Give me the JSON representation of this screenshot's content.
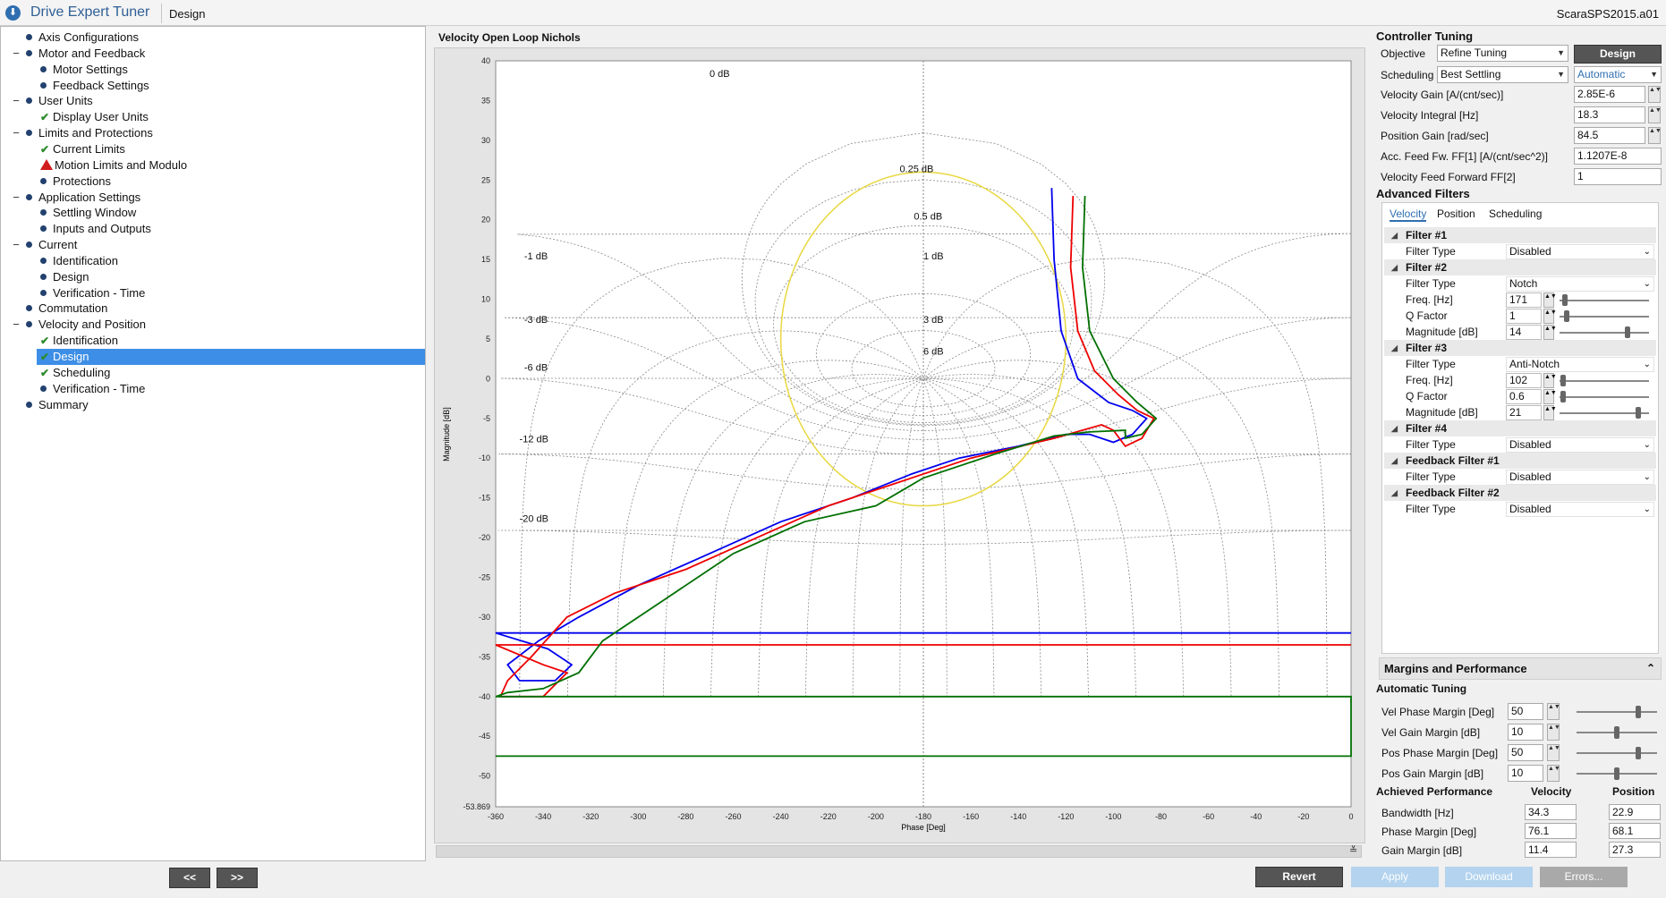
{
  "titlebar": {
    "app_title": "Drive Expert Tuner",
    "breadcrumb": "Design",
    "filename": "ScaraSPS2015.a01"
  },
  "tree": [
    {
      "label": "Axis Configurations",
      "level": 1,
      "toggle": "",
      "icon": "bullet"
    },
    {
      "label": "Motor and Feedback",
      "level": 1,
      "toggle": "−",
      "icon": "bullet"
    },
    {
      "label": "Motor Settings",
      "level": 2,
      "toggle": "",
      "icon": "bullet"
    },
    {
      "label": "Feedback Settings",
      "level": 2,
      "toggle": "",
      "icon": "bullet"
    },
    {
      "label": "User Units",
      "level": 1,
      "toggle": "−",
      "icon": "bullet"
    },
    {
      "label": "Display User Units",
      "level": 2,
      "toggle": "",
      "icon": "check"
    },
    {
      "label": "Limits and Protections",
      "level": 1,
      "toggle": "−",
      "icon": "bullet"
    },
    {
      "label": "Current Limits",
      "level": 2,
      "toggle": "",
      "icon": "check"
    },
    {
      "label": "Motion Limits and Modulo",
      "level": 2,
      "toggle": "",
      "icon": "warn"
    },
    {
      "label": "Protections",
      "level": 2,
      "toggle": "",
      "icon": "bullet"
    },
    {
      "label": "Application Settings",
      "level": 1,
      "toggle": "−",
      "icon": "bullet"
    },
    {
      "label": "Settling Window",
      "level": 2,
      "toggle": "",
      "icon": "bullet"
    },
    {
      "label": "Inputs and Outputs",
      "level": 2,
      "toggle": "",
      "icon": "bullet"
    },
    {
      "label": "Current",
      "level": 1,
      "toggle": "−",
      "icon": "bullet"
    },
    {
      "label": "Identification",
      "level": 2,
      "toggle": "",
      "icon": "bullet"
    },
    {
      "label": "Design",
      "level": 2,
      "toggle": "",
      "icon": "bullet"
    },
    {
      "label": "Verification - Time",
      "level": 2,
      "toggle": "",
      "icon": "bullet"
    },
    {
      "label": "Commutation",
      "level": 1,
      "toggle": "",
      "icon": "bullet"
    },
    {
      "label": "Velocity and Position",
      "level": 1,
      "toggle": "−",
      "icon": "bullet"
    },
    {
      "label": "Identification",
      "level": 2,
      "toggle": "",
      "icon": "check"
    },
    {
      "label": "Design",
      "level": 2,
      "toggle": "",
      "icon": "check",
      "selected": true
    },
    {
      "label": "Scheduling",
      "level": 2,
      "toggle": "",
      "icon": "check"
    },
    {
      "label": "Verification - Time",
      "level": 2,
      "toggle": "",
      "icon": "bullet"
    },
    {
      "label": "Summary",
      "level": 1,
      "toggle": "",
      "icon": "bullet"
    }
  ],
  "nav": {
    "prev": "<<",
    "next": ">>"
  },
  "chart_title": "Velocity Open Loop Nichols",
  "chart_data": {
    "type": "line",
    "title": "Velocity Open Loop Nichols",
    "xlabel": "Phase [Deg]",
    "ylabel": "Magnitude [dB]",
    "xlim": [
      -360,
      0
    ],
    "ylim": [
      -53.869,
      40
    ],
    "xticks": [
      -360,
      -340,
      -320,
      -300,
      -280,
      -260,
      -240,
      -220,
      -200,
      -180,
      -160,
      -140,
      -120,
      -100,
      -80,
      -60,
      -40,
      -20,
      0
    ],
    "yticks": [
      "40",
      "35",
      "30",
      "25",
      "20",
      "15",
      "10",
      "5",
      "0",
      "-5",
      "-10",
      "-15",
      "-20",
      "-25",
      "-30",
      "-35",
      "-40",
      "-45",
      "-50",
      "-53.869"
    ],
    "grid_labels": [
      {
        "text": "0 dB",
        "x": -270,
        "y": 38
      },
      {
        "text": "0.25 dB",
        "x": -190,
        "y": 26
      },
      {
        "text": "0.5 dB",
        "x": -184,
        "y": 20
      },
      {
        "text": "1 dB",
        "x": -180,
        "y": 15
      },
      {
        "text": "3 dB",
        "x": -180,
        "y": 7
      },
      {
        "text": "6 dB",
        "x": -180,
        "y": 3
      },
      {
        "text": "-1 dB",
        "x": -348,
        "y": 15
      },
      {
        "text": "-3 dB",
        "x": -348,
        "y": 7
      },
      {
        "text": "-6 dB",
        "x": -348,
        "y": 1
      },
      {
        "text": "-12 dB",
        "x": -350,
        "y": -8
      },
      {
        "text": "-20 dB",
        "x": -350,
        "y": -18
      }
    ],
    "series": [
      {
        "color": "#0000ee",
        "points": [
          [
            -126,
            24
          ],
          [
            -125,
            15
          ],
          [
            -122,
            6
          ],
          [
            -115,
            0
          ],
          [
            -102,
            -3
          ],
          [
            -92,
            -4
          ],
          [
            -86,
            -5
          ],
          [
            -92,
            -7
          ],
          [
            -100,
            -8
          ],
          [
            -110,
            -7
          ],
          [
            -120,
            -7
          ],
          [
            -140,
            -8.5
          ],
          [
            -165,
            -10
          ],
          [
            -185,
            -12
          ],
          [
            -210,
            -15
          ],
          [
            -240,
            -18
          ],
          [
            -270,
            -22
          ],
          [
            -300,
            -26
          ],
          [
            -325,
            -30
          ],
          [
            -342,
            -33
          ],
          [
            -355,
            -36
          ],
          [
            -350,
            -38
          ],
          [
            -335,
            -38
          ],
          [
            -328,
            -36
          ],
          [
            -338,
            -34
          ],
          [
            -360,
            -32
          ],
          [
            -20,
            -32
          ],
          [
            0,
            -32
          ]
        ]
      },
      {
        "color": "#ee0000",
        "points": [
          [
            -117,
            23
          ],
          [
            -118,
            14
          ],
          [
            -115,
            6
          ],
          [
            -108,
            1
          ],
          [
            -98,
            -2
          ],
          [
            -90,
            -4
          ],
          [
            -83,
            -5
          ],
          [
            -88,
            -7.5
          ],
          [
            -95,
            -8.5
          ],
          [
            -100,
            -6.5
          ],
          [
            -105,
            -5.8
          ],
          [
            -125,
            -7.5
          ],
          [
            -160,
            -10
          ],
          [
            -190,
            -13
          ],
          [
            -220,
            -16
          ],
          [
            -250,
            -20
          ],
          [
            -280,
            -24
          ],
          [
            -310,
            -27
          ],
          [
            -330,
            -30
          ],
          [
            -345,
            -35
          ],
          [
            -355,
            -38
          ],
          [
            -358,
            -40
          ],
          [
            -340,
            -40
          ],
          [
            -330,
            -37
          ],
          [
            -340,
            -36
          ],
          [
            -360,
            -33.5
          ],
          [
            -50,
            -33.5
          ],
          [
            0,
            -33.5
          ]
        ]
      },
      {
        "color": "#007000",
        "points": [
          [
            -112,
            23
          ],
          [
            -113,
            14
          ],
          [
            -110,
            6
          ],
          [
            -100,
            0
          ],
          [
            -90,
            -3
          ],
          [
            -82,
            -5
          ],
          [
            -88,
            -7
          ],
          [
            -95,
            -7.5
          ],
          [
            -95,
            -6.5
          ],
          [
            -110,
            -6.7
          ],
          [
            -125,
            -7.2
          ],
          [
            -150,
            -9.5
          ],
          [
            -180,
            -12.5
          ],
          [
            -200,
            -16
          ],
          [
            -230,
            -18
          ],
          [
            -260,
            -22
          ],
          [
            -290,
            -28
          ],
          [
            -315,
            -33
          ],
          [
            -325,
            -37
          ],
          [
            -340,
            -39
          ],
          [
            -355,
            -39.5
          ],
          [
            -360,
            -40
          ],
          [
            0,
            -40
          ],
          [
            0,
            -47.5
          ],
          [
            -360,
            -47.5
          ]
        ]
      }
    ]
  },
  "controller": {
    "section_title": "Controller Tuning",
    "objective_label": "Objective",
    "objective_value": "Refine Tuning",
    "design_button": "Design",
    "scheduling_label": "Scheduling",
    "scheduling_value": "Best Settling",
    "scheduling_mode": "Automatic",
    "params": [
      {
        "label": "Velocity Gain [A/(cnt/sec)]",
        "value": "2.85E-6"
      },
      {
        "label": "Velocity Integral [Hz]",
        "value": "18.3"
      },
      {
        "label": "Position Gain [rad/sec]",
        "value": "84.5"
      },
      {
        "label": "Acc. Feed Fw. FF[1] [A/(cnt/sec^2)]",
        "value": "1.1207E-8"
      },
      {
        "label": "Velocity Feed Forward FF[2]",
        "value": "1"
      }
    ]
  },
  "filters": {
    "section_title": "Advanced Filters",
    "tabs": [
      "Velocity",
      "Position",
      "Scheduling"
    ],
    "groups": [
      {
        "title": "Filter #1",
        "rows": [
          {
            "label": "Filter Type",
            "value": "Disabled",
            "kind": "select"
          }
        ]
      },
      {
        "title": "Filter #2",
        "rows": [
          {
            "label": "Filter Type",
            "value": "Notch",
            "kind": "select"
          },
          {
            "label": "Freq. [Hz]",
            "value": "171",
            "kind": "num",
            "level": 0.03
          },
          {
            "label": "Q Factor",
            "value": "1",
            "kind": "num",
            "level": 0.05
          },
          {
            "label": "Magnitude [dB]",
            "value": "14",
            "kind": "num",
            "level": 0.78
          }
        ]
      },
      {
        "title": "Filter #3",
        "rows": [
          {
            "label": "Filter Type",
            "value": "Anti-Notch",
            "kind": "select"
          },
          {
            "label": "Freq. [Hz]",
            "value": "102",
            "kind": "num",
            "level": 0.01
          },
          {
            "label": "Q Factor",
            "value": "0.6",
            "kind": "num",
            "level": 0.01
          },
          {
            "label": "Magnitude [dB]",
            "value": "21",
            "kind": "num",
            "level": 0.9
          }
        ]
      },
      {
        "title": "Filter #4",
        "rows": [
          {
            "label": "Filter Type",
            "value": "Disabled",
            "kind": "select"
          }
        ]
      },
      {
        "title": "Feedback Filter #1",
        "rows": [
          {
            "label": "Filter Type",
            "value": "Disabled",
            "kind": "select"
          }
        ]
      },
      {
        "title": "Feedback Filter #2",
        "rows": [
          {
            "label": "Filter Type",
            "value": "Disabled",
            "kind": "select"
          }
        ]
      }
    ]
  },
  "margins": {
    "section_title": "Margins and Performance",
    "auto_title": "Automatic Tuning",
    "auto_rows": [
      {
        "label": "Vel Phase Margin [Deg]",
        "value": "50",
        "level": 0.78
      },
      {
        "label": "Vel Gain Margin [dB]",
        "value": "10",
        "level": 0.5
      },
      {
        "label": "Pos Phase Margin [Deg]",
        "value": "50",
        "level": 0.78
      },
      {
        "label": "Pos Gain Margin [dB]",
        "value": "10",
        "level": 0.5
      }
    ],
    "achieved_title": "Achieved Performance",
    "col_velocity": "Velocity",
    "col_position": "Position",
    "achieved_rows": [
      {
        "label": "Bandwidth [Hz]",
        "velocity": "34.3",
        "position": "22.9"
      },
      {
        "label": "Phase Margin [Deg]",
        "velocity": "76.1",
        "position": "68.1"
      },
      {
        "label": "Gain Margin [dB]",
        "velocity": "11.4",
        "position": "27.3"
      }
    ]
  },
  "bottom_buttons": {
    "revert": "Revert",
    "apply": "Apply",
    "download": "Download",
    "errors": "Errors..."
  },
  "colors": {
    "accent": "#2f6fb0",
    "selected": "#3d8ee6",
    "yellow_circle": "#e8d840"
  }
}
